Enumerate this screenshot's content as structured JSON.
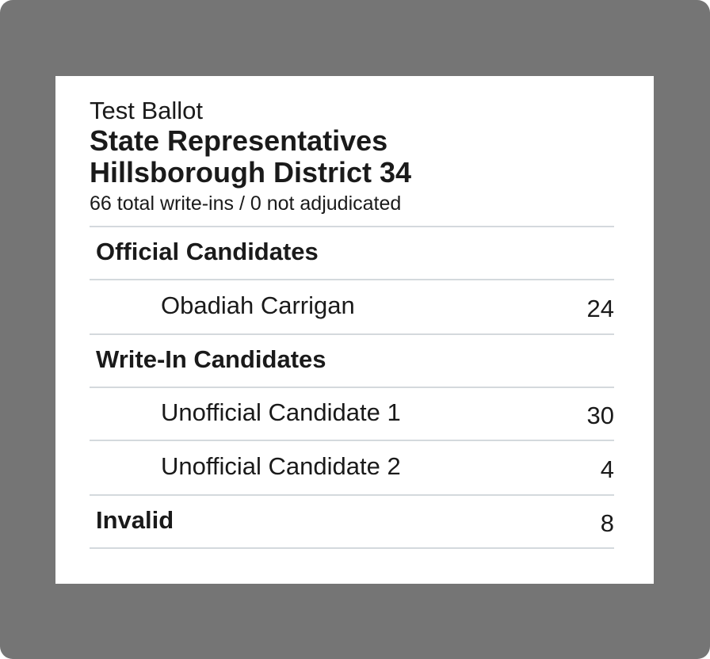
{
  "header": {
    "subtitle": "Test Ballot",
    "title_line1": "State Representatives",
    "title_line2": "Hillsborough District 34",
    "summary": "66 total write-ins / 0 not adjudicated"
  },
  "official": {
    "label": "Official Candidates",
    "candidates": [
      {
        "name": "Obadiah Carrigan",
        "count": "24"
      }
    ]
  },
  "write_in": {
    "label": "Write-In Candidates",
    "candidates": [
      {
        "name": "Unofficial Candidate 1",
        "count": "30"
      },
      {
        "name": "Unofficial Candidate 2",
        "count": "4"
      }
    ]
  },
  "invalid": {
    "label": "Invalid",
    "count": "8"
  },
  "colors": {
    "frame": "#757575",
    "card": "#ffffff",
    "divider": "#d4d9dd",
    "text": "#1a1a1a"
  }
}
